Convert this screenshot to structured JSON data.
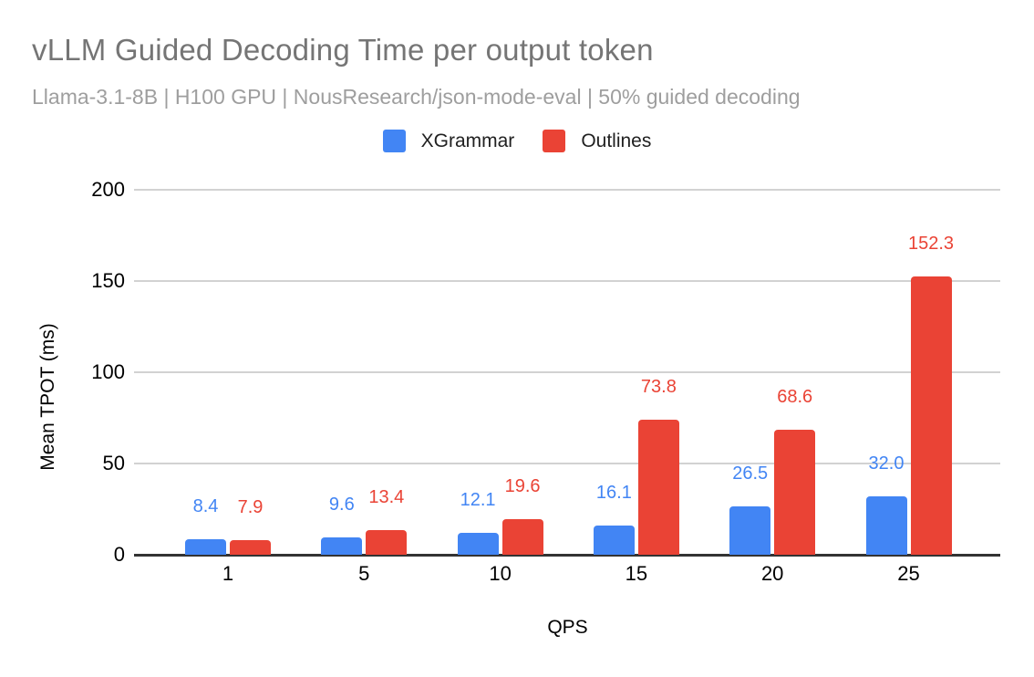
{
  "header": {
    "title": "vLLM Guided Decoding Time per output token",
    "subtitle": "Llama-3.1-8B | H100 GPU | NousResearch/json-mode-eval | 50% guided decoding"
  },
  "chart_data": {
    "type": "bar",
    "title": "vLLM Guided Decoding Time per output token",
    "subtitle": "Llama-3.1-8B | H100 GPU | NousResearch/json-mode-eval | 50% guided decoding",
    "xlabel": "QPS",
    "ylabel": "Mean TPOT (ms)",
    "categories": [
      "1",
      "5",
      "10",
      "15",
      "20",
      "25"
    ],
    "series": [
      {
        "name": "XGrammar",
        "color": "#4285F4",
        "values": [
          8.4,
          9.6,
          12.1,
          16.1,
          26.5,
          32.0
        ]
      },
      {
        "name": "Outlines",
        "color": "#EA4335",
        "values": [
          7.9,
          13.4,
          19.6,
          73.8,
          68.6,
          152.3
        ]
      }
    ],
    "ylim": [
      0,
      200
    ],
    "yticks": [
      0,
      50,
      100,
      150,
      200
    ],
    "grid": true,
    "legend_position": "top",
    "data_labels": true
  },
  "colors": {
    "title_text": "#757575",
    "subtitle_text": "#9e9e9e",
    "gridline": "#d2d2d2",
    "axis_line": "#333333",
    "tick_text": "#000000",
    "xgrammar_blue": "#4285F4",
    "outlines_red": "#EA4335"
  }
}
